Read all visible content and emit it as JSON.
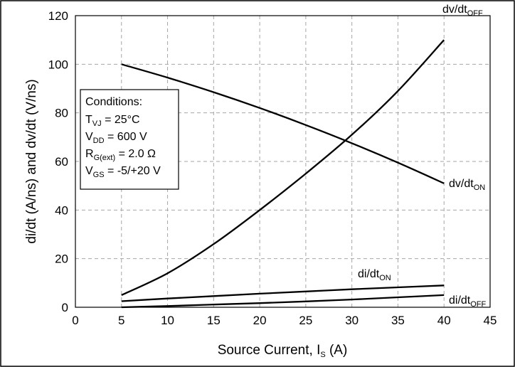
{
  "chart_data": {
    "type": "line",
    "ylabel": "di/dt (A/ns) and dv/dt (V/ns)",
    "xlabel": {
      "main": "Source Current, I",
      "sub": "S",
      "tail": " (A)"
    },
    "xlim": [
      0,
      45
    ],
    "ylim": [
      0,
      120
    ],
    "x_ticks": [
      0,
      5,
      10,
      15,
      20,
      25,
      30,
      35,
      40,
      45
    ],
    "y_ticks": [
      0,
      20,
      40,
      60,
      80,
      100,
      120
    ],
    "grid": true,
    "series": [
      {
        "name": {
          "main": "dv/dt",
          "sub": "OFF"
        },
        "x": [
          5,
          10,
          15,
          20,
          25,
          30,
          35,
          40
        ],
        "y": [
          5,
          14,
          26,
          40,
          55,
          71,
          89,
          110
        ]
      },
      {
        "name": {
          "main": "dv/dt",
          "sub": "ON"
        },
        "x": [
          5,
          10,
          15,
          20,
          25,
          30,
          35,
          40
        ],
        "y": [
          100,
          94.5,
          88.5,
          82,
          75,
          67.5,
          59.5,
          51
        ]
      },
      {
        "name": {
          "main": "di/dt",
          "sub": "ON"
        },
        "x": [
          5,
          10,
          15,
          20,
          25,
          30,
          35,
          40
        ],
        "y": [
          2.5,
          3.6,
          4.6,
          5.6,
          6.5,
          7.4,
          8.2,
          9
        ]
      },
      {
        "name": {
          "main": "di/dt",
          "sub": "OFF"
        },
        "x": [
          5,
          10,
          15,
          20,
          25,
          30,
          35,
          40
        ],
        "y": [
          0,
          0.5,
          1.1,
          1.7,
          2.4,
          3.2,
          4.1,
          5
        ]
      }
    ],
    "conditions": {
      "title": "Conditions:",
      "lines": [
        {
          "main": "T",
          "sub": "VJ",
          "tail": " = 25°C"
        },
        {
          "main": "V",
          "sub": "DD",
          "tail": " = 600 V"
        },
        {
          "main": "R",
          "sub": "G(ext)",
          "tail": " = 2.0 Ω"
        },
        {
          "main": "V",
          "sub": "GS",
          "tail": " = -5/+20 V"
        }
      ]
    }
  }
}
